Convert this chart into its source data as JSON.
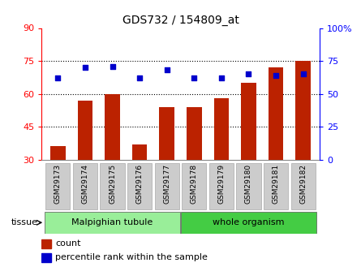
{
  "title": "GDS732 / 154809_at",
  "samples": [
    "GSM29173",
    "GSM29174",
    "GSM29175",
    "GSM29176",
    "GSM29177",
    "GSM29178",
    "GSM29179",
    "GSM29180",
    "GSM29181",
    "GSM29182"
  ],
  "count_values": [
    36,
    57,
    60,
    37,
    54,
    54,
    58,
    65,
    72,
    75
  ],
  "percentile_values": [
    62,
    70,
    71,
    62,
    68,
    62,
    62,
    65,
    64,
    65
  ],
  "bar_color": "#bb2200",
  "marker_color": "#0000cc",
  "ylim_left": [
    30,
    90
  ],
  "ylim_right": [
    0,
    100
  ],
  "yticks_left": [
    30,
    45,
    60,
    75,
    90
  ],
  "yticks_right": [
    0,
    25,
    50,
    75,
    100
  ],
  "ytick_labels_right": [
    "0",
    "25",
    "50",
    "75",
    "100%"
  ],
  "tissue_groups": [
    {
      "label": "Malpighian tubule",
      "start": 0,
      "end": 5,
      "color": "#99ee99"
    },
    {
      "label": "whole organism",
      "start": 5,
      "end": 10,
      "color": "#44cc44"
    }
  ],
  "legend_count_label": "count",
  "legend_percentile_label": "percentile rank within the sample",
  "tissue_label": "tissue",
  "background_color": "#ffffff",
  "bar_bottom": 30,
  "grid_dotted_at": [
    45,
    60,
    75
  ],
  "left_spine_color": "red",
  "right_spine_color": "blue"
}
